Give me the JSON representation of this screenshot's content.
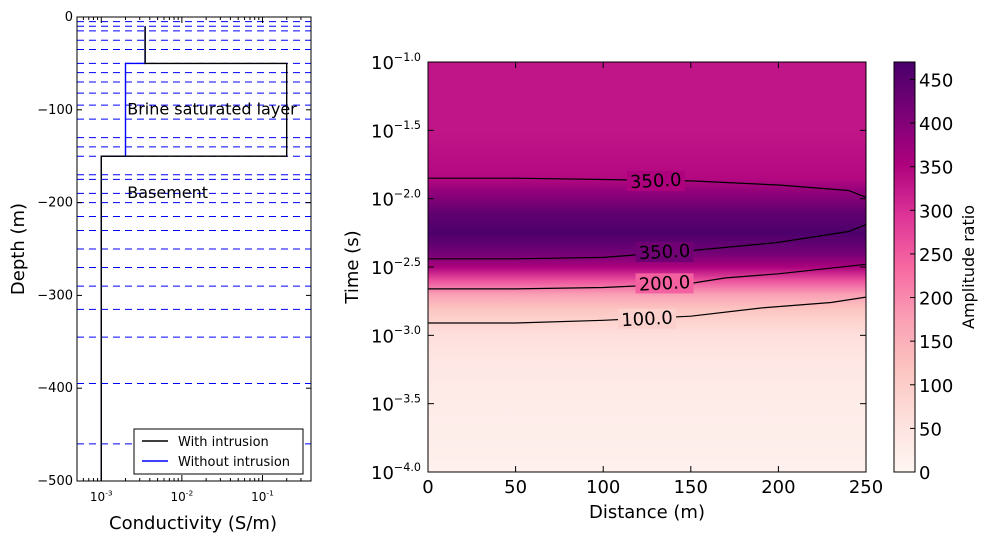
{
  "chart_data": [
    {
      "type": "line",
      "xlabel": "Conductivity (S/m)",
      "ylabel": "Depth (m)",
      "xscale": "log",
      "xlim": [
        0.0005,
        0.4
      ],
      "ylim": [
        -500,
        0
      ],
      "xticks": [
        {
          "value": 0.001,
          "base": "10",
          "exp": "-3"
        },
        {
          "value": 0.01,
          "base": "10",
          "exp": "-2"
        },
        {
          "value": 0.1,
          "base": "10",
          "exp": "-1"
        }
      ],
      "yticks": [
        {
          "value": 0,
          "label": "0"
        },
        {
          "value": -100,
          "label": "−100"
        },
        {
          "value": -200,
          "label": "−200"
        },
        {
          "value": -300,
          "label": "−300"
        },
        {
          "value": -400,
          "label": "−400"
        },
        {
          "value": -500,
          "label": "−500"
        }
      ],
      "series": [
        {
          "name": "With intrusion",
          "color": "#000000",
          "points": [
            [
              0.0035,
              -10
            ],
            [
              0.0035,
              -50
            ],
            [
              0.2,
              -50
            ],
            [
              0.2,
              -150
            ],
            [
              0.001,
              -150
            ],
            [
              0.001,
              -500
            ]
          ]
        },
        {
          "name": "Without intrusion",
          "color": "#0000ff",
          "points": [
            [
              0.0035,
              -10
            ],
            [
              0.0035,
              -50
            ],
            [
              0.002,
              -50
            ],
            [
              0.002,
              -150
            ],
            [
              0.001,
              -150
            ],
            [
              0.001,
              -500
            ]
          ]
        }
      ],
      "layer_boundaries": [
        -5,
        -10,
        -15,
        -25,
        -35,
        -50,
        -60,
        -70,
        -82,
        -95,
        -110,
        -130,
        -140,
        -150,
        -170,
        -175,
        -190,
        -200,
        -215,
        -230,
        -250,
        -270,
        -290,
        -315,
        -345,
        -395,
        -460
      ],
      "boundary_color": "#0000ff",
      "annotations": [
        {
          "text": "Brine saturated layer",
          "x": 0.0021,
          "y": -105
        },
        {
          "text": "Basement",
          "x": 0.0021,
          "y": -195
        }
      ],
      "legend": {
        "placement": "lower-right"
      }
    },
    {
      "type": "heatmap",
      "xlabel": "Distance (m)",
      "ylabel": "Time (s)",
      "xlim": [
        0,
        250
      ],
      "ylim_log10": [
        -4.0,
        -1.0
      ],
      "xticks": [
        {
          "value": 0,
          "label": "0"
        },
        {
          "value": 50,
          "label": "50"
        },
        {
          "value": 100,
          "label": "100"
        },
        {
          "value": 150,
          "label": "150"
        },
        {
          "value": 200,
          "label": "200"
        },
        {
          "value": 250,
          "label": "250"
        }
      ],
      "yticks": [
        {
          "value": -1.0,
          "base": "10",
          "exp": "−1.0"
        },
        {
          "value": -1.5,
          "base": "10",
          "exp": "−1.5"
        },
        {
          "value": -2.0,
          "base": "10",
          "exp": "−2.0"
        },
        {
          "value": -2.5,
          "base": "10",
          "exp": "−2.5"
        },
        {
          "value": -3.0,
          "base": "10",
          "exp": "−3.0"
        },
        {
          "value": -3.5,
          "base": "10",
          "exp": "−3.5"
        },
        {
          "value": -4.0,
          "base": "10",
          "exp": "−4.0"
        }
      ],
      "colormap": "RdPu",
      "colorbar": {
        "label": "Amplitude ratio",
        "min": 0,
        "max": 470,
        "ticks": [
          {
            "value": 0,
            "label": "0"
          },
          {
            "value": 50,
            "label": "50"
          },
          {
            "value": 100,
            "label": "100"
          },
          {
            "value": 150,
            "label": "150"
          },
          {
            "value": 200,
            "label": "200"
          },
          {
            "value": 250,
            "label": "250"
          },
          {
            "value": 300,
            "label": "300"
          },
          {
            "value": 350,
            "label": "350"
          },
          {
            "value": 400,
            "label": "400"
          },
          {
            "value": 450,
            "label": "450"
          }
        ]
      },
      "amplitude_profile": [
        {
          "log_t": -1.0,
          "value": 330
        },
        {
          "log_t": -1.5,
          "value": 330
        },
        {
          "log_t": -1.85,
          "value": 345
        },
        {
          "log_t": -1.95,
          "value": 385
        },
        {
          "log_t": -2.1,
          "value": 440
        },
        {
          "log_t": -2.25,
          "value": 465
        },
        {
          "log_t": -2.4,
          "value": 420
        },
        {
          "log_t": -2.5,
          "value": 355
        },
        {
          "log_t": -2.6,
          "value": 260
        },
        {
          "log_t": -2.7,
          "value": 175
        },
        {
          "log_t": -2.8,
          "value": 120
        },
        {
          "log_t": -2.9,
          "value": 85
        },
        {
          "log_t": -3.0,
          "value": 60
        },
        {
          "log_t": -3.2,
          "value": 40
        },
        {
          "log_t": -3.5,
          "value": 28
        },
        {
          "log_t": -4.0,
          "value": 18
        }
      ],
      "contours": [
        {
          "label": "350.0",
          "points": [
            [
              0,
              -1.85
            ],
            [
              50,
              -1.85
            ],
            [
              100,
              -1.86
            ],
            [
              150,
              -1.87
            ],
            [
              200,
              -1.9
            ],
            [
              240,
              -1.94
            ],
            [
              250,
              -1.99
            ]
          ],
          "label_at": [
            130,
            -1.87
          ]
        },
        {
          "label": "350.0",
          "points": [
            [
              0,
              -2.44
            ],
            [
              50,
              -2.44
            ],
            [
              100,
              -2.43
            ],
            [
              150,
              -2.38
            ],
            [
              200,
              -2.32
            ],
            [
              240,
              -2.24
            ],
            [
              250,
              -2.19
            ]
          ],
          "label_at": [
            135,
            -2.39
          ]
        },
        {
          "label": "200.0",
          "points": [
            [
              0,
              -2.66
            ],
            [
              50,
              -2.66
            ],
            [
              100,
              -2.65
            ],
            [
              150,
              -2.62
            ],
            [
              170,
              -2.58
            ],
            [
              200,
              -2.55
            ],
            [
              250,
              -2.48
            ]
          ],
          "label_at": [
            135,
            -2.62
          ]
        },
        {
          "label": "100.0",
          "points": [
            [
              0,
              -2.91
            ],
            [
              50,
              -2.91
            ],
            [
              100,
              -2.89
            ],
            [
              150,
              -2.86
            ],
            [
              190,
              -2.8
            ],
            [
              230,
              -2.76
            ],
            [
              250,
              -2.72
            ]
          ],
          "label_at": [
            125,
            -2.88
          ]
        }
      ]
    }
  ]
}
